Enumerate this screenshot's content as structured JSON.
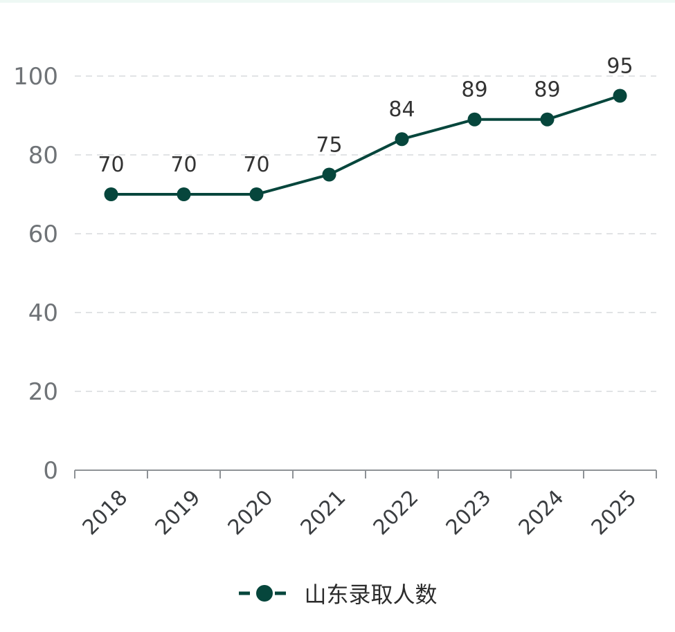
{
  "chart_data": {
    "type": "line",
    "categories": [
      "2018",
      "2019",
      "2020",
      "2021",
      "2022",
      "2023",
      "2024",
      "2025"
    ],
    "series": [
      {
        "name": "山东录取人数",
        "values": [
          70,
          70,
          70,
          75,
          84,
          89,
          89,
          95
        ]
      }
    ],
    "y_ticks": [
      "0",
      "20",
      "40",
      "60",
      "80",
      "100"
    ],
    "ylim": [
      0,
      100
    ],
    "grid": true,
    "legend_position": "bottom-center",
    "data_labels": [
      "70",
      "70",
      "70",
      "75",
      "84",
      "89",
      "89",
      "95"
    ],
    "colors": {
      "series": "#06463c",
      "grid": "#e1e3e5",
      "axis": "#8e9296"
    }
  }
}
